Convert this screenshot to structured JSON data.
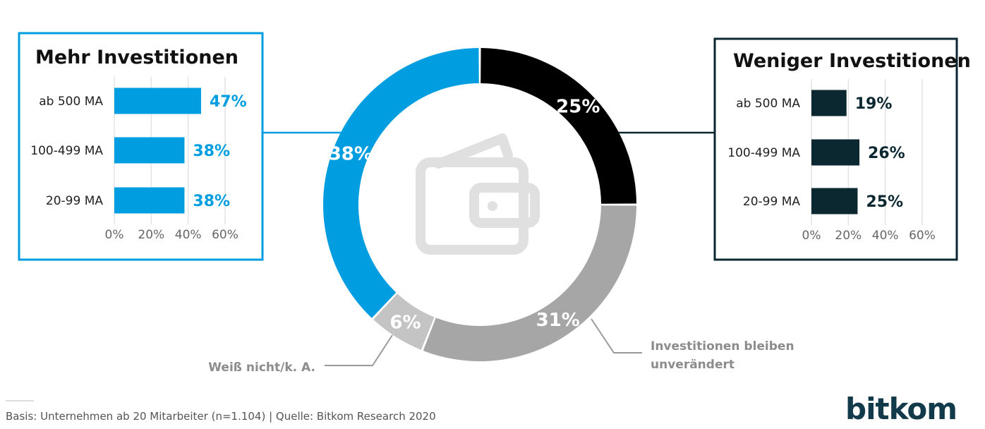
{
  "colors": {
    "blue": "#009ee0",
    "dark": "#0b2730",
    "black": "#000000",
    "gray": "#a6a6a6",
    "light_gray": "#c4c4c4",
    "grid": "#e3e3e3"
  },
  "chart_data": [
    {
      "type": "pie",
      "title": "",
      "donut": true,
      "icon": "wallet-icon",
      "slices": [
        {
          "label": "Weniger Investitionen",
          "value": 25,
          "display": "25%",
          "color": "#000000"
        },
        {
          "label": "Investitionen bleiben unverändert",
          "value": 31,
          "display": "31%",
          "color": "#a6a6a6"
        },
        {
          "label": "Weiß nicht/k. A.",
          "value": 6,
          "display": "6%",
          "color": "#c4c4c4"
        },
        {
          "label": "Mehr Investitionen",
          "value": 38,
          "display": "38%",
          "color": "#009ee0"
        }
      ]
    },
    {
      "type": "bar",
      "orientation": "horizontal",
      "title": "Mehr Investitionen",
      "categories": [
        "ab 500 MA",
        "100-499 MA",
        "20-99 MA"
      ],
      "values": [
        47,
        38,
        38
      ],
      "value_labels": [
        "47%",
        "38%",
        "38%"
      ],
      "xlim": [
        0,
        60
      ],
      "ticks": [
        "0%",
        "20%",
        "40%",
        "60%"
      ],
      "color": "#009ee0",
      "grid": true
    },
    {
      "type": "bar",
      "orientation": "horizontal",
      "title": "Weniger Investitionen",
      "categories": [
        "ab 500 MA",
        "100-499 MA",
        "20-99 MA"
      ],
      "values": [
        19,
        26,
        25
      ],
      "value_labels": [
        "19%",
        "26%",
        "25%"
      ],
      "xlim": [
        0,
        60
      ],
      "ticks": [
        "0%",
        "20%",
        "40%",
        "60%"
      ],
      "color": "#0b2730",
      "grid": true
    }
  ],
  "callouts": {
    "unchanged": [
      "Investitionen bleiben",
      "unverändert"
    ],
    "unknown": "Weiß nicht/k. A."
  },
  "footer": {
    "text": "Basis: Unternehmen ab 20 Mitarbeiter (n=1.104) | Quelle: Bitkom Research 2020"
  },
  "logo": {
    "text": "bitkom"
  }
}
